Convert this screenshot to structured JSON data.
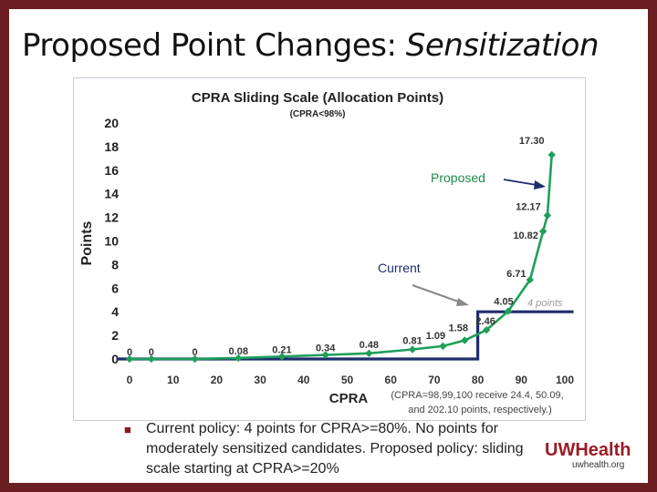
{
  "slide": {
    "title_main": "Proposed Point Changes: ",
    "title_em": "Sensitization",
    "bullet": "Current policy: 4 points for CPRA>=80%. No points for moderately sensitized candidates.  Proposed policy: sliding scale starting at CPRA>=20%",
    "logo_text": "UWHealth",
    "logo_url": "uwhealth.org"
  },
  "colors": {
    "proposed": "#1fa05a",
    "current": "#1f2d6b",
    "frame": "#6b1f22"
  },
  "chart_data": {
    "type": "line",
    "title": "CPRA Sliding Scale (Allocation Points)",
    "subtitle": "(CPRA<98%)",
    "xlabel": "CPRA",
    "ylabel": "Points",
    "xlim": [
      0,
      100
    ],
    "ylim": [
      0,
      20
    ],
    "xticks": [
      0,
      10,
      20,
      30,
      40,
      50,
      60,
      70,
      80,
      90,
      100
    ],
    "yticks": [
      0,
      2,
      4,
      6,
      8,
      10,
      12,
      14,
      16,
      18,
      20
    ],
    "series": [
      {
        "name": "Proposed",
        "x": [
          0,
          5,
          15,
          25,
          35,
          45,
          55,
          65,
          72,
          77,
          82,
          87,
          92,
          95,
          96,
          97
        ],
        "y": [
          0,
          0,
          0,
          0.08,
          0.21,
          0.34,
          0.48,
          0.81,
          1.09,
          1.58,
          2.46,
          4.05,
          6.71,
          10.82,
          12.17,
          17.3
        ]
      },
      {
        "name": "Current",
        "x": [
          -3,
          80,
          80,
          102
        ],
        "y": [
          0,
          0,
          4,
          4
        ]
      }
    ],
    "data_labels": [
      {
        "x": 0,
        "y": 0,
        "text": "0"
      },
      {
        "x": 5,
        "y": 0,
        "text": "0"
      },
      {
        "x": 15,
        "y": 0,
        "text": "0"
      },
      {
        "x": 25,
        "y": 0.08,
        "text": "0.08"
      },
      {
        "x": 35,
        "y": 0.21,
        "text": "0.21"
      },
      {
        "x": 45,
        "y": 0.34,
        "text": "0.34"
      },
      {
        "x": 55,
        "y": 0.48,
        "text": "0.48"
      },
      {
        "x": 65,
        "y": 0.81,
        "text": "0.81"
      },
      {
        "x": 72,
        "y": 1.09,
        "text": "1.09"
      },
      {
        "x": 77,
        "y": 1.58,
        "text": "1.58"
      },
      {
        "x": 82,
        "y": 2.46,
        "text": "2.46"
      },
      {
        "x": 87,
        "y": 4.05,
        "text": "4.05"
      },
      {
        "x": 92,
        "y": 6.71,
        "text": "6.71"
      },
      {
        "x": 95,
        "y": 10.82,
        "text": "10.82"
      },
      {
        "x": 96,
        "y": 12.17,
        "text": "12.17"
      },
      {
        "x": 97,
        "y": 17.3,
        "text": "17.30"
      }
    ],
    "annotations": {
      "proposed_label": "Proposed",
      "current_label": "Current",
      "current_points": "4 points",
      "note_line1": "(CPRA=98,99,100 receive 24.4, 50.09,",
      "note_line2": "and 202.10 points, respectively.)"
    }
  }
}
